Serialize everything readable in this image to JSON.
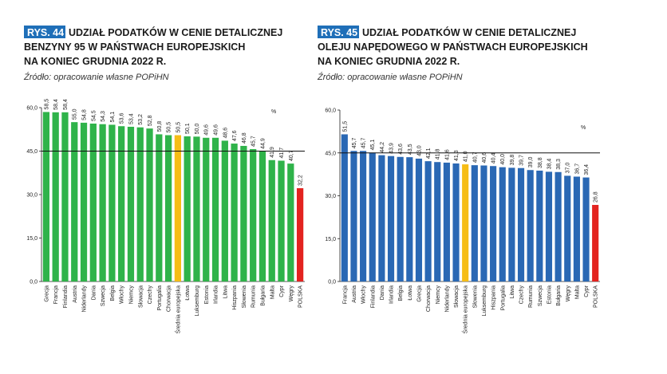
{
  "chart_data": [
    {
      "type": "bar",
      "badge": "RYS. 44",
      "title_lines": [
        "UDZIAŁ PODATKÓW W CENIE DETALICZNEJ",
        "BENZYNY 95 W PAŃSTWACH EUROPEJSKICH",
        "NA KONIEC GRUDNIA 2022 R."
      ],
      "source": "Źródło: opracowanie własne POPiHN",
      "unit": "%",
      "categories": [
        "Grecja",
        "Francja",
        "Finlandia",
        "Austria",
        "Niderlandy",
        "Dania",
        "Szwecja",
        "Belgia",
        "Włochy",
        "Niemcy",
        "Słowacja",
        "Czechy",
        "Portugalia",
        "Chorwacja",
        "Średnia europejska",
        "Łotwa",
        "Luksemburg",
        "Estonia",
        "Irlandia",
        "Litwa",
        "Hiszpania",
        "Słowenia",
        "Rumunia",
        "Bułgaria",
        "Malta",
        "Cypr",
        "Węgry",
        "POLSKA"
      ],
      "values": [
        58.5,
        58.4,
        58.4,
        55.0,
        54.8,
        54.5,
        54.3,
        54.1,
        53.6,
        53.4,
        53.2,
        52.8,
        50.8,
        50.5,
        50.5,
        50.1,
        50.0,
        49.6,
        49.6,
        48.6,
        47.6,
        46.8,
        45.7,
        44.9,
        41.9,
        41.7,
        40.7,
        32.2
      ],
      "value_labels": [
        "58,5",
        "58,4",
        "58,4",
        "55,0",
        "54,8",
        "54,5",
        "54,3",
        "54,1",
        "53,6",
        "53,4",
        "53,2",
        "52,8",
        "50,8",
        "50,5",
        "50,5",
        "50,1",
        "50,0",
        "49,6",
        "49,6",
        "48,6",
        "47,6",
        "46,8",
        "45,7",
        "44,9",
        "41,9",
        "41,7",
        "40,7",
        "32,2"
      ],
      "colors": [
        "#2fb34a",
        "#2fb34a",
        "#2fb34a",
        "#2fb34a",
        "#2fb34a",
        "#2fb34a",
        "#2fb34a",
        "#2fb34a",
        "#2fb34a",
        "#2fb34a",
        "#2fb34a",
        "#2fb34a",
        "#2fb34a",
        "#2fb34a",
        "#f6bd16",
        "#2fb34a",
        "#2fb34a",
        "#2fb34a",
        "#2fb34a",
        "#2fb34a",
        "#2fb34a",
        "#2fb34a",
        "#2fb34a",
        "#2fb34a",
        "#2fb34a",
        "#2fb34a",
        "#2fb34a",
        "#e3231f"
      ],
      "ylim": [
        0,
        60
      ],
      "yticks": [
        {
          "value": 0,
          "label": "0,0"
        },
        {
          "value": 15,
          "label": "15,0"
        },
        {
          "value": 30,
          "label": "30,0"
        },
        {
          "value": 45,
          "label": "45,0"
        },
        {
          "value": 60,
          "label": "60,0"
        }
      ],
      "reference_line": 45
    },
    {
      "type": "bar",
      "badge": "RYS. 45",
      "title_lines": [
        "UDZIAŁ PODATKÓW W CENIE DETALICZNEJ",
        "OLEJU NAPĘDOWEGO W PAŃSTWACH EUROPEJSKICH",
        "NA KONIEC GRUDNIA 2022 R."
      ],
      "source": "Źródło: opracowanie własne POPiHN",
      "unit": "%",
      "categories": [
        "Francja",
        "Austria",
        "Włochy",
        "Finlandia",
        "Dania",
        "Irlandia",
        "Belgia",
        "Łotwa",
        "Grecja",
        "Chorwacja",
        "Niemcy",
        "Niderlandy",
        "Słowacja",
        "Średnia europejska",
        "Słowenia",
        "Luksemburg",
        "Hiszpania",
        "Portugalia",
        "Litwa",
        "Czechy",
        "Rumunia",
        "Szwecja",
        "Estonia",
        "Bułgaria",
        "Węgry",
        "Malta",
        "Cypr",
        "POLSKA"
      ],
      "values": [
        51.5,
        45.7,
        45.7,
        45.1,
        44.2,
        43.9,
        43.6,
        43.5,
        43.0,
        42.1,
        41.8,
        41.6,
        41.3,
        41.0,
        40.7,
        40.6,
        40.4,
        40.0,
        39.8,
        39.7,
        39.0,
        38.8,
        38.4,
        38.3,
        37.0,
        36.7,
        36.4,
        26.8
      ],
      "value_labels": [
        "51,5",
        "45,7",
        "45,7",
        "45,1",
        "44,2",
        "43,9",
        "43,6",
        "43,5",
        "43,0",
        "42,1",
        "41,8",
        "41,6",
        "41,3",
        "41,0",
        "40,7",
        "40,6",
        "40,4",
        "40,0",
        "39,8",
        "39,7",
        "39,0",
        "38,8",
        "38,4",
        "38,3",
        "37,0",
        "36,7",
        "36,4",
        "26,8"
      ],
      "colors": [
        "#2a68b4",
        "#2a68b4",
        "#2a68b4",
        "#2a68b4",
        "#2a68b4",
        "#2a68b4",
        "#2a68b4",
        "#2a68b4",
        "#2a68b4",
        "#2a68b4",
        "#2a68b4",
        "#2a68b4",
        "#2a68b4",
        "#f6bd16",
        "#2a68b4",
        "#2a68b4",
        "#2a68b4",
        "#2a68b4",
        "#2a68b4",
        "#2a68b4",
        "#2a68b4",
        "#2a68b4",
        "#2a68b4",
        "#2a68b4",
        "#2a68b4",
        "#2a68b4",
        "#2a68b4",
        "#e3231f"
      ],
      "ylim": [
        0,
        60
      ],
      "yticks": [
        {
          "value": 0,
          "label": "0,0"
        },
        {
          "value": 15,
          "label": "15,0"
        },
        {
          "value": 30,
          "label": "30,0"
        },
        {
          "value": 45,
          "label": "45,0"
        },
        {
          "value": 60,
          "label": "60,0"
        }
      ],
      "reference_line": 45
    }
  ]
}
